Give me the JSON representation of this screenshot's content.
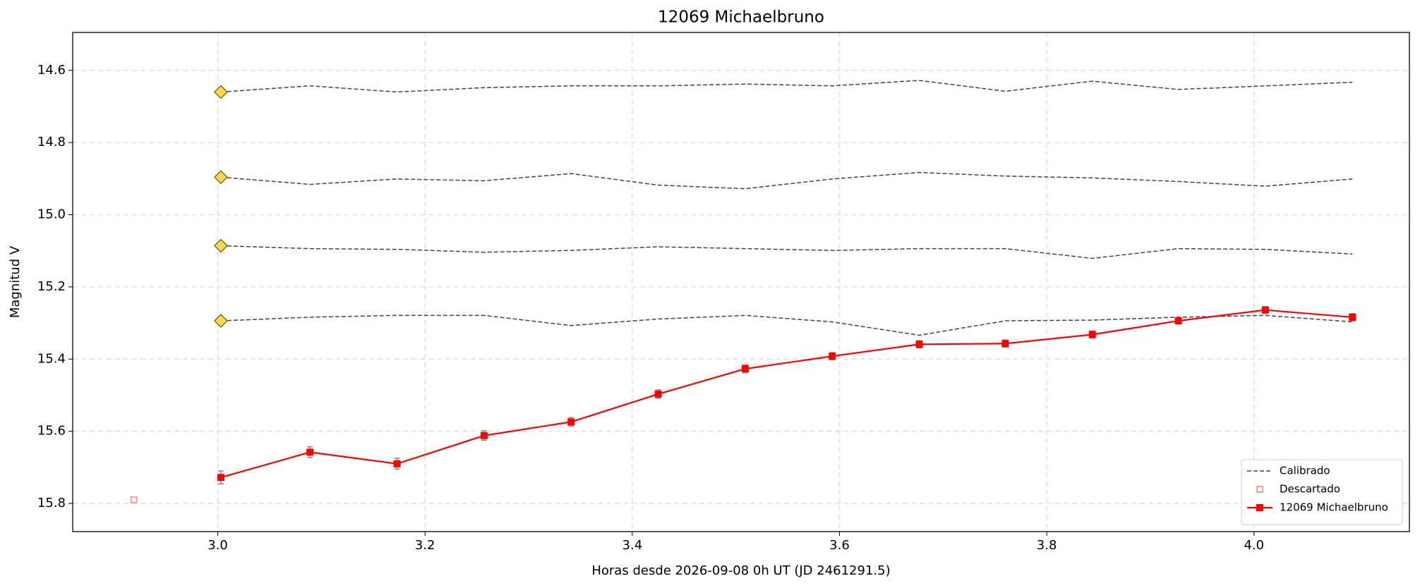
{
  "chart_data": {
    "type": "line",
    "title": "12069 Michaelbruno",
    "x_label": "Horas desde 2026-09-08 0h UT (JD 2461291.5)",
    "y_label": "Magnitud V",
    "x": [
      3.003,
      3.089,
      3.173,
      3.257,
      3.341,
      3.425,
      3.509,
      3.593,
      3.677,
      3.76,
      3.844,
      3.927,
      4.011,
      4.095
    ],
    "series": [
      {
        "name": "12069 Michaelbruno",
        "color": "#ff0000",
        "values": [
          15.728,
          15.658,
          15.69,
          15.612,
          15.574,
          15.497,
          15.427,
          15.392,
          15.359,
          15.357,
          15.332,
          15.294,
          15.264,
          15.284
        ],
        "errors": [
          0.018,
          0.015,
          0.015,
          0.013,
          0.012,
          0.012,
          0.011,
          0.01,
          0.01,
          0.01,
          0.01,
          0.009,
          0.009,
          0.01
        ]
      }
    ],
    "calibrated": {
      "name": "Calibrado",
      "color": "#444444",
      "marker_color": "#ffd84d",
      "lines": [
        [
          14.66,
          14.643,
          14.66,
          14.648,
          14.643,
          14.643,
          14.638,
          14.643,
          14.628,
          14.658,
          14.63,
          14.653,
          14.643,
          14.633
        ],
        [
          14.896,
          14.916,
          14.901,
          14.906,
          14.886,
          14.918,
          14.928,
          14.901,
          14.883,
          14.893,
          14.898,
          14.908,
          14.921,
          14.901
        ],
        [
          15.086,
          15.094,
          15.096,
          15.104,
          15.099,
          15.089,
          15.094,
          15.099,
          15.094,
          15.094,
          15.121,
          15.094,
          15.096,
          15.109
        ],
        [
          15.294,
          15.284,
          15.279,
          15.279,
          15.307,
          15.289,
          15.279,
          15.297,
          15.334,
          15.294,
          15.292,
          15.284,
          15.279,
          15.297
        ]
      ]
    },
    "discarded": {
      "name": "Descartado",
      "color": "#ff8080",
      "x": [
        2.919
      ],
      "values": [
        15.79
      ]
    },
    "xlim": [
      2.86,
      4.15
    ],
    "xticks": [
      {
        "value": 3,
        "label": "3.0"
      },
      3.2,
      3.4,
      3.6,
      3.8,
      {
        "value": 4,
        "label": "4.0"
      }
    ],
    "ylim": [
      15.878,
      14.495
    ],
    "yticks": [
      14.6,
      14.8,
      {
        "value": 15,
        "label": "15.0"
      },
      15.2,
      15.4,
      15.6,
      15.8
    ],
    "grid": true,
    "legend": "lower right"
  }
}
